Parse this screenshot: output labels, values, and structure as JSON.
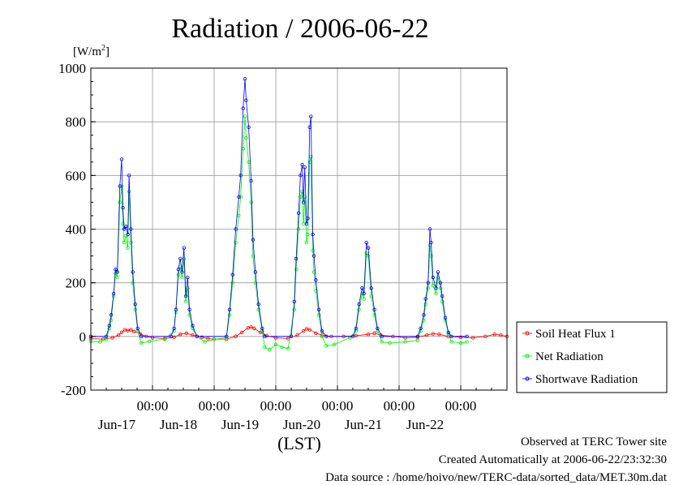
{
  "chart_data": {
    "type": "line",
    "title": "Radiation / 2006-06-22",
    "unit_label": "[W/m",
    "unit_sup": "2",
    "unit_close": "]",
    "xlabel": "(LST)",
    "ylim": [
      -200,
      1000
    ],
    "yticks": [
      "1000",
      "800",
      "600",
      "400",
      "200",
      "0",
      "-200"
    ],
    "ytick_values": [
      1000,
      800,
      600,
      400,
      200,
      0,
      -200
    ],
    "xlim_days": [
      16,
      22.75
    ],
    "x_day_ticks": [
      {
        "time": "00:00",
        "day": "Jun-17",
        "at": 17
      },
      {
        "time": "00:00",
        "day": "Jun-18",
        "at": 18
      },
      {
        "time": "00:00",
        "day": "Jun-19",
        "at": 19
      },
      {
        "time": "00:00",
        "day": "Jun-20",
        "at": 20
      },
      {
        "time": "00:00",
        "day": "Jun-21",
        "at": 21
      },
      {
        "time": "00:00",
        "day": "Jun-22",
        "at": 22
      }
    ],
    "grid": true,
    "legend_position": "right",
    "series": [
      {
        "name": "Soil Heat Flux 1",
        "color": "#ff0000",
        "points": [
          [
            16.0,
            -8
          ],
          [
            16.2,
            -10
          ],
          [
            16.35,
            -5
          ],
          [
            16.45,
            5
          ],
          [
            16.5,
            15
          ],
          [
            16.55,
            25
          ],
          [
            16.6,
            22
          ],
          [
            16.65,
            25
          ],
          [
            16.7,
            18
          ],
          [
            16.8,
            10
          ],
          [
            16.9,
            0
          ],
          [
            17.0,
            -5
          ],
          [
            17.2,
            -8
          ],
          [
            17.35,
            -3
          ],
          [
            17.45,
            8
          ],
          [
            17.55,
            12
          ],
          [
            17.65,
            5
          ],
          [
            17.8,
            -3
          ],
          [
            17.9,
            -8
          ],
          [
            18.0,
            -10
          ],
          [
            18.2,
            -10
          ],
          [
            18.35,
            0
          ],
          [
            18.45,
            15
          ],
          [
            18.55,
            32
          ],
          [
            18.6,
            35
          ],
          [
            18.65,
            30
          ],
          [
            18.75,
            15
          ],
          [
            18.85,
            3
          ],
          [
            19.0,
            -5
          ],
          [
            19.2,
            -8
          ],
          [
            19.35,
            5
          ],
          [
            19.45,
            20
          ],
          [
            19.5,
            28
          ],
          [
            19.55,
            25
          ],
          [
            19.65,
            12
          ],
          [
            19.75,
            5
          ],
          [
            19.9,
            0
          ],
          [
            20.1,
            0
          ],
          [
            20.3,
            3
          ],
          [
            20.5,
            8
          ],
          [
            20.6,
            12
          ],
          [
            20.7,
            5
          ],
          [
            20.9,
            0
          ],
          [
            21.1,
            -5
          ],
          [
            21.3,
            -3
          ],
          [
            21.45,
            5
          ],
          [
            21.55,
            10
          ],
          [
            21.65,
            8
          ],
          [
            21.8,
            0
          ],
          [
            22.0,
            -3
          ],
          [
            22.2,
            -5
          ],
          [
            22.4,
            0
          ],
          [
            22.55,
            8
          ],
          [
            22.65,
            5
          ],
          [
            22.75,
            0
          ]
        ]
      },
      {
        "name": "Net Radiation",
        "color": "#00ee00",
        "points": [
          [
            16.0,
            -18
          ],
          [
            16.15,
            -20
          ],
          [
            16.25,
            -10
          ],
          [
            16.3,
            30
          ],
          [
            16.33,
            60
          ],
          [
            16.37,
            150
          ],
          [
            16.4,
            235
          ],
          [
            16.43,
            220
          ],
          [
            16.47,
            500
          ],
          [
            16.5,
            560
          ],
          [
            16.52,
            420
          ],
          [
            16.54,
            350
          ],
          [
            16.57,
            375
          ],
          [
            16.6,
            330
          ],
          [
            16.62,
            540
          ],
          [
            16.65,
            350
          ],
          [
            16.68,
            200
          ],
          [
            16.72,
            100
          ],
          [
            16.76,
            20
          ],
          [
            16.82,
            -25
          ],
          [
            16.95,
            -18
          ],
          [
            17.2,
            -10
          ],
          [
            17.35,
            20
          ],
          [
            17.38,
            90
          ],
          [
            17.42,
            230
          ],
          [
            17.45,
            260
          ],
          [
            17.48,
            220
          ],
          [
            17.51,
            290
          ],
          [
            17.54,
            130
          ],
          [
            17.57,
            180
          ],
          [
            17.6,
            80
          ],
          [
            17.65,
            30
          ],
          [
            17.72,
            0
          ],
          [
            17.85,
            -20
          ],
          [
            18.0,
            -10
          ],
          [
            18.2,
            -5
          ],
          [
            18.25,
            80
          ],
          [
            18.3,
            200
          ],
          [
            18.35,
            350
          ],
          [
            18.4,
            450
          ],
          [
            18.43,
            520
          ],
          [
            18.47,
            700
          ],
          [
            18.5,
            820
          ],
          [
            18.52,
            740
          ],
          [
            18.56,
            650
          ],
          [
            18.6,
            500
          ],
          [
            18.63,
            300
          ],
          [
            18.67,
            200
          ],
          [
            18.72,
            100
          ],
          [
            18.78,
            20
          ],
          [
            18.82,
            -40
          ],
          [
            18.9,
            -50
          ],
          [
            19.0,
            -30
          ],
          [
            19.1,
            -40
          ],
          [
            19.2,
            -45
          ],
          [
            19.3,
            100
          ],
          [
            19.33,
            250
          ],
          [
            19.37,
            400
          ],
          [
            19.4,
            520
          ],
          [
            19.43,
            540
          ],
          [
            19.45,
            420
          ],
          [
            19.47,
            520
          ],
          [
            19.5,
            350
          ],
          [
            19.52,
            380
          ],
          [
            19.55,
            650
          ],
          [
            19.57,
            670
          ],
          [
            19.6,
            320
          ],
          [
            19.62,
            240
          ],
          [
            19.65,
            170
          ],
          [
            19.7,
            80
          ],
          [
            19.75,
            0
          ],
          [
            19.82,
            -35
          ],
          [
            19.95,
            -30
          ],
          [
            20.2,
            -5
          ],
          [
            20.3,
            20
          ],
          [
            20.35,
            100
          ],
          [
            20.4,
            160
          ],
          [
            20.43,
            140
          ],
          [
            20.47,
            310
          ],
          [
            20.5,
            300
          ],
          [
            20.55,
            150
          ],
          [
            20.6,
            80
          ],
          [
            20.65,
            20
          ],
          [
            20.72,
            -20
          ],
          [
            20.85,
            -25
          ],
          [
            21.1,
            -20
          ],
          [
            21.3,
            -15
          ],
          [
            21.35,
            20
          ],
          [
            21.4,
            60
          ],
          [
            21.43,
            120
          ],
          [
            21.47,
            180
          ],
          [
            21.5,
            340
          ],
          [
            21.52,
            300
          ],
          [
            21.55,
            190
          ],
          [
            21.6,
            160
          ],
          [
            21.63,
            220
          ],
          [
            21.67,
            180
          ],
          [
            21.7,
            130
          ],
          [
            21.75,
            60
          ],
          [
            21.8,
            10
          ],
          [
            21.85,
            -20
          ],
          [
            22.0,
            -25
          ],
          [
            22.1,
            -20
          ]
        ]
      },
      {
        "name": "Shortwave Radiation",
        "color": "#0000ff",
        "points": [
          [
            16.0,
            0
          ],
          [
            16.25,
            0
          ],
          [
            16.3,
            40
          ],
          [
            16.33,
            80
          ],
          [
            16.37,
            160
          ],
          [
            16.4,
            250
          ],
          [
            16.43,
            240
          ],
          [
            16.47,
            560
          ],
          [
            16.5,
            660
          ],
          [
            16.52,
            480
          ],
          [
            16.54,
            400
          ],
          [
            16.57,
            410
          ],
          [
            16.6,
            380
          ],
          [
            16.62,
            600
          ],
          [
            16.65,
            400
          ],
          [
            16.68,
            240
          ],
          [
            16.72,
            120
          ],
          [
            16.76,
            30
          ],
          [
            16.82,
            0
          ],
          [
            17.3,
            0
          ],
          [
            17.35,
            30
          ],
          [
            17.38,
            100
          ],
          [
            17.42,
            250
          ],
          [
            17.45,
            290
          ],
          [
            17.48,
            240
          ],
          [
            17.51,
            330
          ],
          [
            17.54,
            150
          ],
          [
            17.57,
            220
          ],
          [
            17.6,
            100
          ],
          [
            17.65,
            40
          ],
          [
            17.72,
            0
          ],
          [
            18.2,
            0
          ],
          [
            18.25,
            100
          ],
          [
            18.3,
            230
          ],
          [
            18.35,
            400
          ],
          [
            18.4,
            520
          ],
          [
            18.43,
            600
          ],
          [
            18.47,
            850
          ],
          [
            18.5,
            960
          ],
          [
            18.52,
            880
          ],
          [
            18.56,
            780
          ],
          [
            18.6,
            580
          ],
          [
            18.63,
            360
          ],
          [
            18.67,
            240
          ],
          [
            18.72,
            120
          ],
          [
            18.78,
            30
          ],
          [
            18.82,
            0
          ],
          [
            19.25,
            0
          ],
          [
            19.3,
            130
          ],
          [
            19.33,
            290
          ],
          [
            19.37,
            460
          ],
          [
            19.4,
            600
          ],
          [
            19.43,
            640
          ],
          [
            19.45,
            500
          ],
          [
            19.47,
            630
          ],
          [
            19.5,
            420
          ],
          [
            19.52,
            440
          ],
          [
            19.55,
            780
          ],
          [
            19.57,
            820
          ],
          [
            19.6,
            380
          ],
          [
            19.62,
            300
          ],
          [
            19.65,
            210
          ],
          [
            19.7,
            100
          ],
          [
            19.75,
            20
          ],
          [
            19.82,
            0
          ],
          [
            20.25,
            0
          ],
          [
            20.3,
            30
          ],
          [
            20.35,
            120
          ],
          [
            20.4,
            180
          ],
          [
            20.43,
            160
          ],
          [
            20.47,
            350
          ],
          [
            20.5,
            330
          ],
          [
            20.55,
            180
          ],
          [
            20.6,
            100
          ],
          [
            20.65,
            30
          ],
          [
            20.72,
            0
          ],
          [
            21.3,
            0
          ],
          [
            21.35,
            30
          ],
          [
            21.4,
            80
          ],
          [
            21.43,
            140
          ],
          [
            21.47,
            200
          ],
          [
            21.5,
            400
          ],
          [
            21.52,
            350
          ],
          [
            21.55,
            220
          ],
          [
            21.6,
            180
          ],
          [
            21.63,
            240
          ],
          [
            21.67,
            200
          ],
          [
            21.7,
            150
          ],
          [
            21.75,
            70
          ],
          [
            21.8,
            15
          ],
          [
            21.85,
            0
          ],
          [
            22.1,
            0
          ]
        ]
      }
    ]
  },
  "notes": {
    "observed": "Observed at TERC Tower site",
    "created": "Created Automatically at 2006-06-22/23:32:30",
    "source": "Data source : /home/hoivo/new/TERC-data/sorted_data/MET.30m.dat"
  }
}
